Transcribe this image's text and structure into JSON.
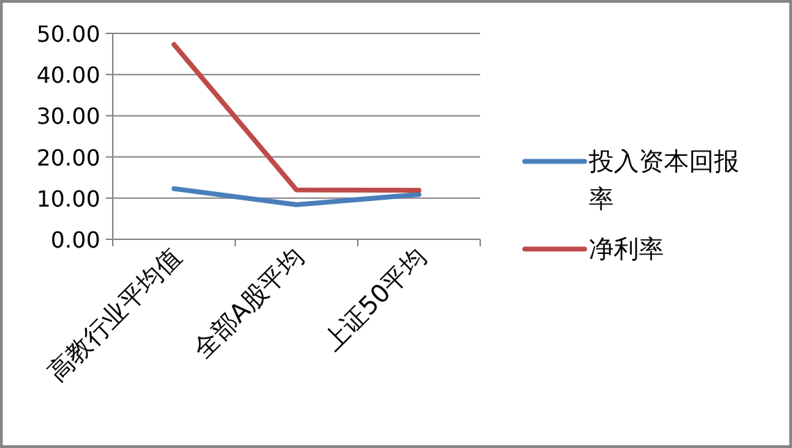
{
  "chart_data": {
    "type": "line",
    "categories": [
      "高教行业平均值",
      "全部A股平均",
      "上证50平均"
    ],
    "series": [
      {
        "name": "投入资本回报率",
        "color": "#4a7ebb",
        "values": [
          12.3,
          8.4,
          10.9
        ]
      },
      {
        "name": "净利率",
        "color": "#be4b48",
        "values": [
          47.3,
          12.0,
          11.9
        ]
      }
    ],
    "ylim": [
      0,
      50
    ],
    "yticks": [
      {
        "value": 0,
        "label": "0.00"
      },
      {
        "value": 10,
        "label": "10.00"
      },
      {
        "value": 20,
        "label": "20.00"
      },
      {
        "value": 30,
        "label": "30.00"
      },
      {
        "value": 40,
        "label": "40.00"
      },
      {
        "value": 50,
        "label": "50.00"
      }
    ],
    "grid": "y",
    "legend": "right"
  }
}
